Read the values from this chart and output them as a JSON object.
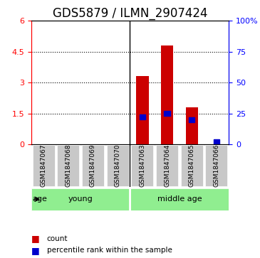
{
  "title": "GDS5879 / ILMN_2907424",
  "samples": [
    "GSM1847067",
    "GSM1847068",
    "GSM1847069",
    "GSM1847070",
    "GSM1847063",
    "GSM1847064",
    "GSM1847065",
    "GSM1847066"
  ],
  "count_values": [
    0,
    0,
    0,
    0,
    3.3,
    4.8,
    1.8,
    0
  ],
  "percentile_values": [
    0,
    0,
    0,
    0,
    22,
    25,
    20,
    2
  ],
  "groups": [
    {
      "label": "young",
      "start": 0,
      "end": 4,
      "color": "#90EE90"
    },
    {
      "label": "middle age",
      "start": 4,
      "end": 8,
      "color": "#90EE90"
    }
  ],
  "group_label": "age",
  "ylim_left": [
    0,
    6
  ],
  "ylim_right": [
    0,
    100
  ],
  "yticks_left": [
    0,
    1.5,
    3,
    4.5,
    6
  ],
  "yticks_right": [
    0,
    25,
    50,
    75,
    100
  ],
  "yticklabels_right": [
    "0",
    "25",
    "50",
    "75",
    "100%"
  ],
  "bar_color": "#CC0000",
  "percentile_color": "#0000CC",
  "bar_width": 0.5,
  "title_fontsize": 12,
  "tick_fontsize": 8,
  "label_fontsize": 9,
  "grid_color": "black",
  "grid_style": "dotted",
  "sample_label_area_color": "#C8C8C8",
  "background_color": "#FFFFFF"
}
